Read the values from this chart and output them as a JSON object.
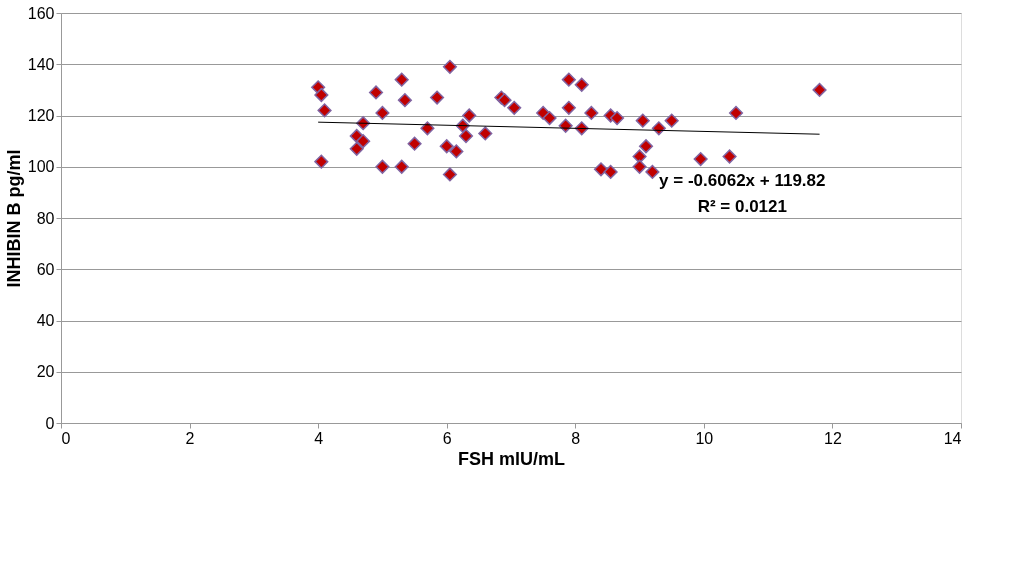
{
  "chart_data": {
    "type": "scatter",
    "xlabel": "FSH mlU/mL",
    "ylabel": "INHIBIN B pg/ml",
    "xlim": [
      0,
      14
    ],
    "xticks": [
      0,
      2,
      4,
      6,
      8,
      10,
      12,
      14
    ],
    "ylim": [
      0,
      160
    ],
    "yticks": [
      0,
      20,
      40,
      60,
      80,
      100,
      120,
      140,
      160
    ],
    "grid": "y",
    "series": [
      {
        "marker": "diamond",
        "color": "#c00000",
        "x": [
          4.0,
          4.05,
          4.1,
          4.05,
          4.6,
          4.6,
          4.7,
          4.7,
          4.9,
          5.0,
          5.0,
          5.3,
          5.3,
          5.35,
          5.5,
          5.7,
          5.85,
          6.0,
          6.05,
          6.05,
          6.15,
          6.25,
          6.3,
          6.35,
          6.6,
          6.85,
          6.9,
          7.05,
          7.5,
          7.6,
          7.85,
          7.9,
          7.9,
          8.1,
          8.1,
          8.25,
          8.4,
          8.55,
          8.55,
          8.65,
          9.0,
          9.0,
          9.05,
          9.1,
          9.2,
          9.3,
          9.5,
          9.95,
          10.4,
          10.5,
          11.8
        ],
        "values": [
          131,
          128,
          122,
          102,
          112,
          107,
          117,
          110,
          129,
          121,
          100,
          100,
          134,
          126,
          109,
          115,
          127,
          108,
          139,
          97,
          106,
          116,
          112,
          120,
          113,
          127,
          126,
          123,
          121,
          119,
          116,
          134,
          123,
          132,
          115,
          121,
          99,
          98,
          120,
          119,
          104,
          100,
          118,
          108,
          98,
          115,
          118,
          103,
          104,
          121,
          130
        ]
      },
      {
        "type": "line",
        "marker": "none",
        "color": "#000000",
        "x": [
          4.0,
          11.8
        ],
        "values": [
          117.4,
          112.7
        ]
      }
    ],
    "annotations": [
      "y = -0.6062x + 119.82",
      "R² = 0.0121"
    ]
  }
}
